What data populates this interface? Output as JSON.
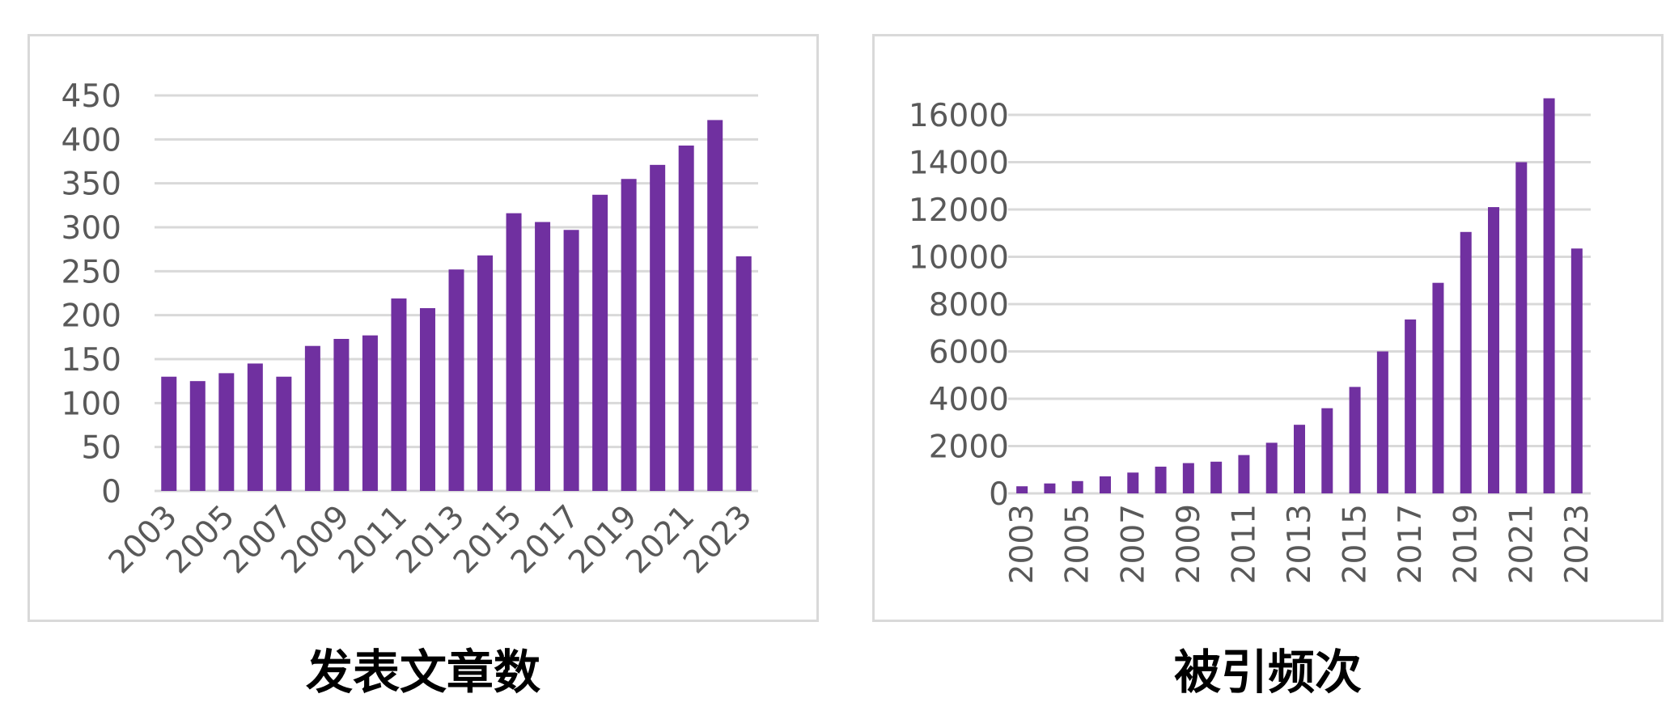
{
  "colors": {
    "bar": "#7030a0",
    "grid": "#d9d9d9",
    "tick_text": "#595959",
    "border": "#d9d9d9",
    "caption": "#000000"
  },
  "chart_data": [
    {
      "type": "bar",
      "title": "发表文章数",
      "categories": [
        "2003",
        "2004",
        "2005",
        "2006",
        "2007",
        "2008",
        "2009",
        "2010",
        "2011",
        "2012",
        "2013",
        "2014",
        "2015",
        "2016",
        "2017",
        "2018",
        "2019",
        "2020",
        "2021",
        "2022",
        "2023"
      ],
      "x_tick_labels": [
        "2003",
        "2005",
        "2007",
        "2009",
        "2011",
        "2013",
        "2015",
        "2017",
        "2019",
        "2021",
        "2023"
      ],
      "values": [
        130,
        125,
        134,
        145,
        130,
        165,
        173,
        177,
        219,
        208,
        252,
        268,
        316,
        306,
        297,
        337,
        355,
        371,
        393,
        422,
        267
      ],
      "ylim": [
        0,
        450
      ],
      "y_ticks": [
        "0",
        "50",
        "100",
        "150",
        "200",
        "250",
        "300",
        "350",
        "400",
        "450"
      ],
      "grid": true,
      "xlabel": "",
      "ylabel": ""
    },
    {
      "type": "bar",
      "title": "被引频次",
      "categories": [
        "2003",
        "2004",
        "2005",
        "2006",
        "2007",
        "2008",
        "2009",
        "2010",
        "2011",
        "2012",
        "2013",
        "2014",
        "2015",
        "2016",
        "2017",
        "2018",
        "2019",
        "2020",
        "2021",
        "2022",
        "2023"
      ],
      "x_tick_labels": [
        "2003",
        "2005",
        "2007",
        "2009",
        "2011",
        "2013",
        "2015",
        "2017",
        "2019",
        "2021",
        "2023"
      ],
      "values": [
        300,
        420,
        520,
        720,
        880,
        1130,
        1280,
        1340,
        1620,
        2140,
        2900,
        3600,
        4500,
        6000,
        7350,
        8900,
        11050,
        12100,
        14000,
        16700,
        10350
      ],
      "ylim": [
        0,
        16000
      ],
      "y_ticks": [
        "0",
        "2000",
        "4000",
        "6000",
        "8000",
        "10000",
        "12000",
        "14000",
        "16000"
      ],
      "grid": true,
      "xlabel": "",
      "ylabel": ""
    }
  ]
}
